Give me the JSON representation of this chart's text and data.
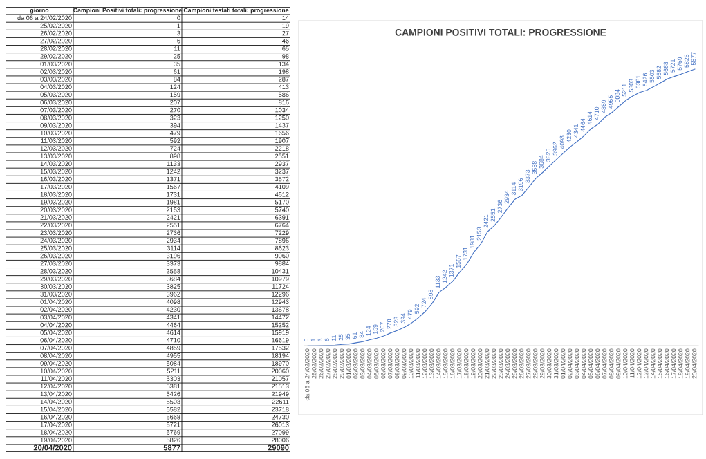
{
  "chart_data": [
    {
      "type": "other",
      "xlabel": "giorno",
      "data_labels": true,
      "categories": [
        "da 06 a 24/02/2020",
        "25/02/2020",
        "26/02/2020",
        "27/02/2020",
        "28/02/2020",
        "29/02/2020",
        "01/03/2020",
        "02/03/2020",
        "03/03/2020",
        "04/03/2020",
        "05/03/2020",
        "06/03/2020",
        "07/03/2020",
        "08/03/2020",
        "09/03/2020",
        "10/03/2020",
        "11/03/2020",
        "12/03/2020",
        "13/03/2020",
        "14/03/2020",
        "15/03/2020",
        "16/03/2020",
        "17/03/2020",
        "18/03/2020",
        "19/03/2020",
        "20/03/2020",
        "21/03/2020",
        "22/03/2020",
        "23/03/2020",
        "24/03/2020",
        "25/03/2020",
        "26/03/2020",
        "27/03/2020",
        "28/03/2020",
        "29/03/2020",
        "30/03/2020",
        "31/03/2020",
        "01/04/2020",
        "02/04/2020",
        "03/04/2020",
        "04/04/2020",
        "05/04/2020",
        "06/04/2020",
        "07/04/2020",
        "08/04/2020",
        "09/04/2020",
        "10/04/2020",
        "11/04/2020",
        "12/04/2020",
        "13/04/2020",
        "14/04/2020",
        "15/04/2020",
        "16/04/2020",
        "17/04/2020",
        "18/04/2020",
        "19/04/2020",
        "20/04/2020"
      ],
      "series": [
        {
          "name": "Campioni Positivi totali: progressione",
          "values": [
            0,
            1,
            3,
            6,
            11,
            25,
            35,
            61,
            84,
            124,
            159,
            207,
            270,
            323,
            394,
            479,
            592,
            724,
            898,
            1133,
            1242,
            1371,
            1567,
            1731,
            1981,
            2153,
            2421,
            2551,
            2736,
            2934,
            3114,
            3196,
            3373,
            3558,
            3684,
            3825,
            3962,
            4098,
            4230,
            4341,
            4464,
            4614,
            4710,
            4859,
            4955,
            5084,
            5211,
            5303,
            5381,
            5426,
            5503,
            5582,
            5668,
            5721,
            5769,
            5826,
            5877
          ]
        },
        {
          "name": "Campioni testati totali: progressione",
          "values": [
            14,
            19,
            27,
            46,
            65,
            98,
            134,
            198,
            287,
            413,
            586,
            816,
            1034,
            1250,
            1437,
            1656,
            1907,
            2218,
            2551,
            2937,
            3237,
            3572,
            4109,
            4512,
            5170,
            5740,
            6391,
            6764,
            7229,
            7896,
            8623,
            9060,
            9884,
            10431,
            10979,
            11724,
            12296,
            12943,
            13678,
            14472,
            15252,
            15919,
            16619,
            17532,
            18194,
            18970,
            20060,
            21057,
            21513,
            21949,
            22611,
            23718,
            24730,
            26013,
            27099,
            28006,
            29090
          ]
        }
      ]
    },
    {
      "type": "line",
      "title": "CAMPIONI POSITIVI TOTALI: PROGRESSIONE",
      "color": "#4472c4",
      "data_labels": true,
      "tick_labels": "x",
      "grid": false,
      "legend": false,
      "categories": [
        "da 06 a 24/02/2020",
        "25/02/2020",
        "26/02/2020",
        "27/02/2020",
        "28/02/2020",
        "29/02/2020",
        "01/03/2020",
        "02/03/2020",
        "03/03/2020",
        "04/03/2020",
        "05/03/2020",
        "06/03/2020",
        "07/03/2020",
        "08/03/2020",
        "09/03/2020",
        "10/03/2020",
        "11/03/2020",
        "12/03/2020",
        "13/03/2020",
        "14/03/2020",
        "15/03/2020",
        "16/03/2020",
        "17/03/2020",
        "18/03/2020",
        "19/03/2020",
        "20/03/2020",
        "21/03/2020",
        "22/03/2020",
        "23/03/2020",
        "24/03/2020",
        "25/03/2020",
        "26/03/2020",
        "27/03/2020",
        "28/03/2020",
        "29/03/2020",
        "30/03/2020",
        "31/03/2020",
        "01/04/2020",
        "02/04/2020",
        "03/04/2020",
        "04/04/2020",
        "05/04/2020",
        "06/04/2020",
        "07/04/2020",
        "08/04/2020",
        "09/04/2020",
        "10/04/2020",
        "11/04/2020",
        "12/04/2020",
        "13/04/2020",
        "14/04/2020",
        "15/04/2020",
        "16/04/2020",
        "17/04/2020",
        "18/04/2020",
        "19/04/2020",
        "20/04/2020"
      ],
      "values": [
        0,
        1,
        3,
        6,
        11,
        25,
        35,
        61,
        84,
        124,
        159,
        207,
        270,
        323,
        394,
        479,
        592,
        724,
        898,
        1133,
        1242,
        1371,
        1567,
        1731,
        1981,
        2153,
        2421,
        2551,
        2736,
        2934,
        3114,
        3196,
        3373,
        3558,
        3684,
        3825,
        3962,
        4098,
        4230,
        4341,
        4464,
        4614,
        4710,
        4859,
        4955,
        5084,
        5211,
        5303,
        5381,
        5426,
        5503,
        5582,
        5668,
        5721,
        5769,
        5826,
        5877
      ]
    }
  ]
}
